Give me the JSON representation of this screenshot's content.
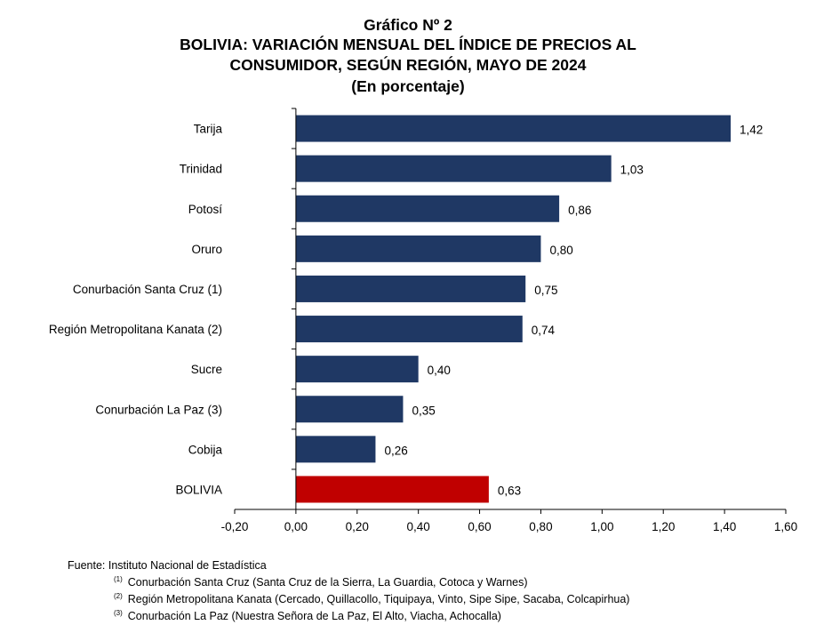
{
  "title_lines": [
    "Gráfico Nº 2",
    "BOLIVIA: VARIACIÓN MENSUAL DEL ÍNDICE DE PRECIOS AL",
    "CONSUMIDOR, SEGÚN REGIÓN, MAYO DE 2024",
    "(En porcentaje)"
  ],
  "chart_data": {
    "type": "bar",
    "orientation": "horizontal",
    "categories": [
      "Tarija",
      "Trinidad",
      "Potosí",
      "Oruro",
      "Conurbación Santa Cruz (1)",
      "Región Metropolitana Kanata (2)",
      "Sucre",
      "Conurbación La Paz (3)",
      "Cobija",
      "BOLIVIA"
    ],
    "values": [
      1.42,
      1.03,
      0.86,
      0.8,
      0.75,
      0.74,
      0.4,
      0.35,
      0.26,
      0.63
    ],
    "value_labels": [
      "1,42",
      "1,03",
      "0,86",
      "0,80",
      "0,75",
      "0,74",
      "0,40",
      "0,35",
      "0,26",
      "0,63"
    ],
    "xlim": [
      -0.2,
      1.6
    ],
    "xticks": [
      -0.2,
      0,
      0.2,
      0.4,
      0.6,
      0.8,
      1.0,
      1.2,
      1.4,
      1.6
    ],
    "xtick_labels": [
      "-0,20",
      "0,00",
      "0,20",
      "0,40",
      "0,60",
      "0,80",
      "1,00",
      "1,20",
      "1,40",
      "1,60"
    ],
    "colors": {
      "bar": "#1f3864",
      "highlight": "#c00000"
    },
    "highlight_category": "BOLIVIA",
    "grid": false
  },
  "notes": {
    "source": "Fuente: Instituto Nacional de Estadística",
    "refs": [
      {
        "mark": "(1)",
        "text": "Conurbación Santa Cruz (Santa Cruz de la Sierra, La Guardia, Cotoca y Warnes)"
      },
      {
        "mark": "(2)",
        "text": "Región Metropolitana Kanata (Cercado, Quillacollo, Tiquipaya, Vinto, Sipe Sipe, Sacaba, Colcapirhua)"
      },
      {
        "mark": "(3)",
        "text": "Conurbación La Paz (Nuestra Señora de La Paz, El Alto, Viacha, Achocalla)"
      }
    ]
  }
}
